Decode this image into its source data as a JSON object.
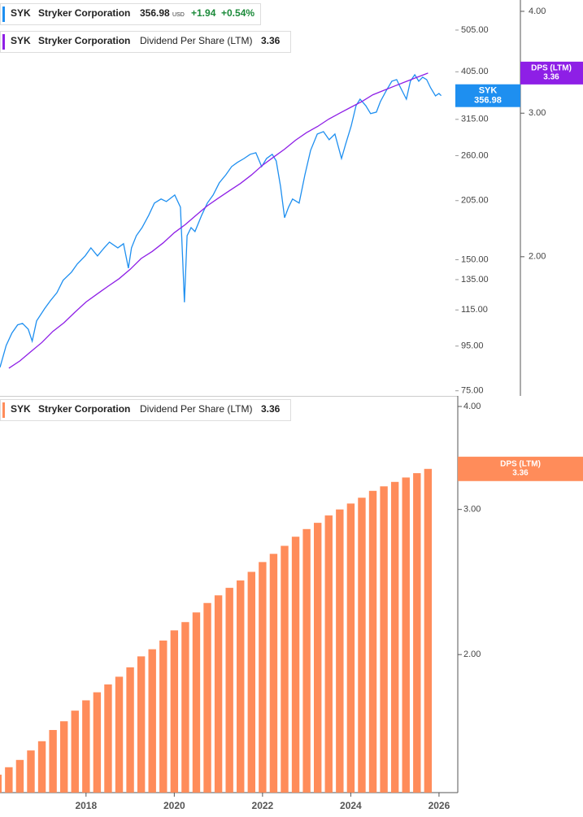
{
  "chart_data": [
    {
      "type": "line",
      "ticker": "SYK",
      "company": "Stryker Corporation",
      "currency": "USD",
      "change": "+1.94",
      "change_pct": "+0.54%",
      "xlim": [
        2016.05,
        2026.37
      ],
      "ylim": [
        73,
        592
      ],
      "y_log_scale": true,
      "yticks": [
        {
          "value": 505,
          "label": "505.00"
        },
        {
          "value": 405,
          "label": "405.00"
        },
        {
          "value": 315,
          "label": "315.00"
        },
        {
          "value": 260,
          "label": "260.00"
        },
        {
          "value": 205,
          "label": "205.00"
        },
        {
          "value": 150,
          "label": "150.00"
        },
        {
          "value": 135,
          "label": "135.00"
        },
        {
          "value": 115,
          "label": "115.00"
        },
        {
          "value": 95,
          "label": "95.00"
        },
        {
          "value": 75,
          "label": "75.00"
        }
      ],
      "y2lim": [
        1.35,
        4.13
      ],
      "y2_log_scale": true,
      "y2ticks": [
        {
          "value": 4,
          "label": "4.00"
        },
        {
          "value": 3,
          "label": "3.00"
        },
        {
          "value": 2,
          "label": "2.00"
        }
      ],
      "grid": false,
      "series": [
        {
          "name": "Stryker Corporation",
          "color": "#1e8ff0",
          "x": [
            2016.05,
            2016.19,
            2016.32,
            2016.45,
            2016.56,
            2016.69,
            2016.78,
            2016.88,
            2017.06,
            2017.19,
            2017.34,
            2017.48,
            2017.67,
            2017.8,
            2017.98,
            2018.11,
            2018.26,
            2018.41,
            2018.53,
            2018.72,
            2018.85,
            2018.96,
            2019.03,
            2019.14,
            2019.27,
            2019.42,
            2019.55,
            2019.7,
            2019.82,
            2020.01,
            2020.14,
            2020.19,
            2020.23,
            2020.29,
            2020.38,
            2020.47,
            2020.62,
            2020.75,
            2020.88,
            2021.02,
            2021.17,
            2021.3,
            2021.43,
            2021.58,
            2021.72,
            2021.85,
            2021.98,
            2022.09,
            2022.22,
            2022.31,
            2022.41,
            2022.5,
            2022.59,
            2022.68,
            2022.83,
            2022.96,
            2023.09,
            2023.24,
            2023.38,
            2023.51,
            2023.64,
            2023.79,
            2023.88,
            2024.01,
            2024.12,
            2024.21,
            2024.34,
            2024.45,
            2024.58,
            2024.67,
            2024.8,
            2024.93,
            2025.04,
            2025.13,
            2025.26,
            2025.35,
            2025.45,
            2025.54,
            2025.63,
            2025.72,
            2025.81,
            2025.92,
            2026.0,
            2026.05
          ],
          "values": [
            84.9,
            95.3,
            101.8,
            106.3,
            107.1,
            103.9,
            97.5,
            108.5,
            115.7,
            120.7,
            126.0,
            134.5,
            140.4,
            146.6,
            153.0,
            159.7,
            153.0,
            159.7,
            164.6,
            159.7,
            163.2,
            143.4,
            159.7,
            170.3,
            177.7,
            189.7,
            202.3,
            206.7,
            204.0,
            211.1,
            198.0,
            149.7,
            119.7,
            170.3,
            177.7,
            174.1,
            189.7,
            202.3,
            211.1,
            225.2,
            235.0,
            245.4,
            250.8,
            256.1,
            261.8,
            264.0,
            245.4,
            256.1,
            261.8,
            252.9,
            220.4,
            187.3,
            198.0,
            206.7,
            202.3,
            235.0,
            267.4,
            291.4,
            295.2,
            282.8,
            291.4,
            256.1,
            275.6,
            304.1,
            338.8,
            350.5,
            338.8,
            324.6,
            327.3,
            346.0,
            366.0,
            385.3,
            388.6,
            372.2,
            350.5,
            385.3,
            398.9,
            385.3,
            393.7,
            388.6,
            372.2,
            356.6,
            361.2,
            356.98
          ]
        },
        {
          "name": "Dividend Per Share (LTM)",
          "label": "DPS (LTM)",
          "color": "#8e1fe6",
          "axis": "y2",
          "x": [
            2016.25,
            2016.5,
            2016.75,
            2017,
            2017.25,
            2017.5,
            2017.75,
            2018,
            2018.25,
            2018.5,
            2018.75,
            2019,
            2019.25,
            2019.5,
            2019.75,
            2020,
            2020.25,
            2020.5,
            2020.75,
            2021,
            2021.25,
            2021.5,
            2021.75,
            2022,
            2022.25,
            2022.5,
            2022.75,
            2023,
            2023.25,
            2023.5,
            2023.75,
            2024,
            2024.25,
            2024.5,
            2024.75,
            2025,
            2025.25,
            2025.5,
            2025.75
          ],
          "values": [
            1.46,
            1.49,
            1.53,
            1.57,
            1.62,
            1.66,
            1.71,
            1.76,
            1.8,
            1.84,
            1.88,
            1.93,
            1.99,
            2.03,
            2.08,
            2.14,
            2.19,
            2.25,
            2.31,
            2.36,
            2.41,
            2.46,
            2.52,
            2.59,
            2.65,
            2.71,
            2.78,
            2.84,
            2.89,
            2.95,
            3.0,
            3.05,
            3.1,
            3.16,
            3.2,
            3.24,
            3.28,
            3.32,
            3.36
          ]
        }
      ]
    },
    {
      "type": "bar",
      "xlim": [
        2016.05,
        2026.37
      ],
      "xticks": [
        2018,
        2020,
        2022,
        2024,
        2026
      ],
      "ylim": [
        1.36,
        4.12
      ],
      "y_log_scale": true,
      "yticks": [
        {
          "value": 4,
          "label": "4.00"
        },
        {
          "value": 3,
          "label": "3.00"
        },
        {
          "value": 2,
          "label": "2.00"
        }
      ],
      "grid": false,
      "series": [
        {
          "name": "Dividend Per Share (LTM)",
          "label": "DPS (LTM)",
          "color": "#ff8c5a",
          "x": [
            2016,
            2016.25,
            2016.5,
            2016.75,
            2017,
            2017.25,
            2017.5,
            2017.75,
            2018,
            2018.25,
            2018.5,
            2018.75,
            2019,
            2019.25,
            2019.5,
            2019.75,
            2020,
            2020.25,
            2020.5,
            2020.75,
            2021,
            2021.25,
            2021.5,
            2021.75,
            2022,
            2022.25,
            2022.5,
            2022.75,
            2023,
            2023.25,
            2023.5,
            2023.75,
            2024,
            2024.25,
            2024.5,
            2024.75,
            2025,
            2025.25,
            2025.5,
            2025.75
          ],
          "values": [
            1.43,
            1.46,
            1.49,
            1.53,
            1.57,
            1.62,
            1.66,
            1.71,
            1.76,
            1.8,
            1.84,
            1.88,
            1.93,
            1.99,
            2.03,
            2.08,
            2.14,
            2.19,
            2.25,
            2.31,
            2.36,
            2.41,
            2.46,
            2.52,
            2.59,
            2.65,
            2.71,
            2.78,
            2.84,
            2.89,
            2.95,
            3.0,
            3.05,
            3.1,
            3.16,
            3.2,
            3.24,
            3.28,
            3.32,
            3.36
          ]
        }
      ]
    }
  ]
}
